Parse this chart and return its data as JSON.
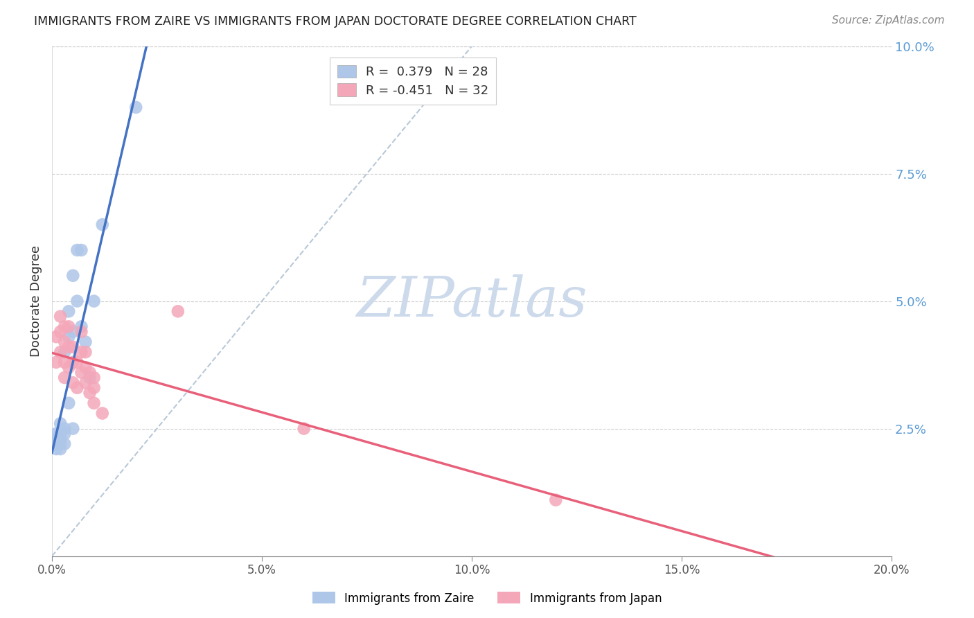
{
  "title": "IMMIGRANTS FROM ZAIRE VS IMMIGRANTS FROM JAPAN DOCTORATE DEGREE CORRELATION CHART",
  "source": "Source: ZipAtlas.com",
  "ylabel": "Doctorate Degree",
  "x_tick_labels": [
    "0.0%",
    "5.0%",
    "10.0%",
    "15.0%",
    "20.0%"
  ],
  "x_tick_values": [
    0.0,
    0.05,
    0.1,
    0.15,
    0.2
  ],
  "y_tick_labels": [
    "2.5%",
    "5.0%",
    "7.5%",
    "10.0%"
  ],
  "y_tick_values": [
    0.025,
    0.05,
    0.075,
    0.1
  ],
  "xlim": [
    0.0,
    0.2
  ],
  "ylim": [
    0.0,
    0.1
  ],
  "zaire_color": "#aec6e8",
  "japan_color": "#f4a7b9",
  "zaire_line_color": "#4472c4",
  "japan_line_color": "#e8607a",
  "diagonal_line_color": "#b8c8d8",
  "watermark_color": "#cddaeb",
  "legend_R_zaire": "R =  0.379   N = 28",
  "legend_R_japan": "R = -0.451   N = 32",
  "zaire_x": [
    0.001,
    0.001,
    0.001,
    0.001,
    0.002,
    0.002,
    0.002,
    0.002,
    0.002,
    0.003,
    0.003,
    0.003,
    0.003,
    0.004,
    0.004,
    0.004,
    0.005,
    0.005,
    0.005,
    0.006,
    0.006,
    0.007,
    0.007,
    0.008,
    0.009,
    0.01,
    0.012,
    0.02
  ],
  "zaire_y": [
    0.021,
    0.022,
    0.023,
    0.024,
    0.021,
    0.022,
    0.023,
    0.024,
    0.026,
    0.022,
    0.024,
    0.025,
    0.04,
    0.03,
    0.043,
    0.048,
    0.025,
    0.044,
    0.055,
    0.05,
    0.06,
    0.045,
    0.06,
    0.042,
    0.035,
    0.05,
    0.065,
    0.088
  ],
  "japan_x": [
    0.001,
    0.001,
    0.002,
    0.002,
    0.002,
    0.003,
    0.003,
    0.003,
    0.003,
    0.004,
    0.004,
    0.004,
    0.005,
    0.005,
    0.005,
    0.006,
    0.006,
    0.007,
    0.007,
    0.007,
    0.008,
    0.008,
    0.008,
    0.009,
    0.009,
    0.01,
    0.01,
    0.01,
    0.012,
    0.03,
    0.06,
    0.12
  ],
  "japan_y": [
    0.038,
    0.043,
    0.04,
    0.044,
    0.047,
    0.035,
    0.038,
    0.042,
    0.045,
    0.037,
    0.041,
    0.045,
    0.034,
    0.038,
    0.041,
    0.033,
    0.038,
    0.036,
    0.04,
    0.044,
    0.034,
    0.037,
    0.04,
    0.032,
    0.036,
    0.03,
    0.033,
    0.035,
    0.028,
    0.048,
    0.025,
    0.011
  ]
}
